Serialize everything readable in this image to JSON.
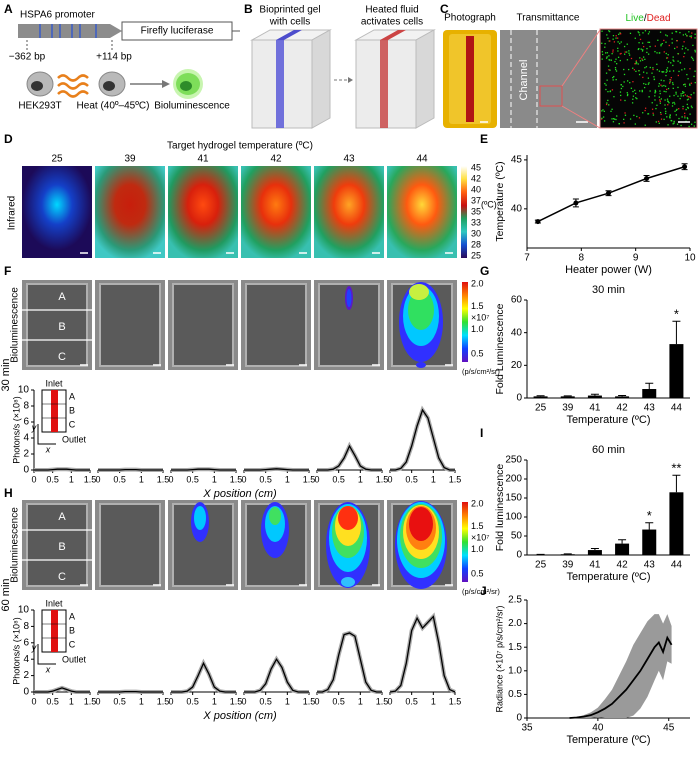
{
  "figure": {
    "A": {
      "label": "A",
      "promoter": "HSPA6 promoter",
      "gene": "Firefly luciferase",
      "upstream": "−362 bp",
      "downstream": "+114 bp",
      "cell_line": "HEK293T",
      "heat": "Heat (40º–45ºC)",
      "output": "Bioluminescence"
    },
    "B": {
      "label": "B",
      "gel": [
        "Bioprinted gel",
        "with cells"
      ],
      "fluid": [
        "Heated fluid",
        "activates cells"
      ]
    },
    "C": {
      "label": "C",
      "photo": "Photograph",
      "transmittance": "Transmittance",
      "channel": "Channel",
      "live": "Live",
      "slash": "/",
      "dead": "Dead"
    },
    "D": {
      "label": "D",
      "title": "Target hydrogel temperature (ºC)",
      "temperatures": [
        "25",
        "39",
        "41",
        "42",
        "43",
        "44"
      ],
      "row": "Infrared",
      "unit": "(ºC)",
      "scale": [
        "45",
        "42",
        "40",
        "37",
        "35",
        "33",
        "30",
        "28",
        "25"
      ]
    },
    "E": {
      "label": "E"
    },
    "F": {
      "label": "F",
      "time": "30 min",
      "row": "Bioluminescence",
      "regions": [
        "A",
        "B",
        "C"
      ],
      "scale": [
        "2.0",
        "1.5",
        "×10⁷",
        "1.0",
        "0.5"
      ],
      "unit": "(p/s/cm²/sr)",
      "inset": {
        "inlet": "Inlet",
        "outlet": "Outlet",
        "regions": [
          "A",
          "B",
          "C"
        ],
        "y": "y",
        "x": "x"
      }
    },
    "G": {
      "label": "G"
    },
    "H": {
      "label": "H",
      "time": "60 min",
      "row": "Bioluminescence",
      "regions": [
        "A",
        "B",
        "C"
      ],
      "scale": [
        "2.0",
        "1.5",
        "×10⁷",
        "1.0",
        "0.5"
      ],
      "unit": "(p/s/cm²/sr)",
      "inset": {
        "inlet": "Inlet",
        "outlet": "Outlet",
        "regions": [
          "A",
          "B",
          "C"
        ],
        "y": "y",
        "x": "x"
      }
    },
    "I": {
      "label": "I"
    },
    "J": {
      "label": "J"
    }
  },
  "chart_data": [
    {
      "type": "line",
      "error_style": "bars",
      "color": "#000000",
      "x": [
        7.2,
        7.9,
        8.5,
        9.2,
        9.9
      ],
      "values": [
        38.7,
        40.6,
        41.6,
        43.1,
        44.3
      ],
      "errors": [
        0.15,
        0.4,
        0.25,
        0.3,
        0.3
      ],
      "xlim": [
        7,
        10
      ],
      "xticks": [
        7,
        8,
        9,
        10
      ],
      "ylim": [
        36,
        45.5
      ],
      "yticks": [
        40,
        45
      ],
      "xlabel": "Heater power (W)",
      "ylabel": "Temperature (ºC)"
    },
    {
      "type": "bar",
      "title": "30 min",
      "color": "#000000",
      "categories": [
        "25",
        "39",
        "41",
        "42",
        "43",
        "44"
      ],
      "values": [
        1,
        1,
        1.5,
        1,
        5.5,
        33
      ],
      "errors": [
        0.4,
        0.3,
        0.8,
        0.5,
        3.5,
        14
      ],
      "significance": [
        null,
        null,
        null,
        null,
        null,
        "*"
      ],
      "ylim": [
        0,
        60
      ],
      "yticks": [
        0,
        20,
        40,
        60
      ],
      "xlabel": "Temperature (ºC)",
      "ylabel": "Fold Luminescence"
    },
    {
      "type": "bar",
      "title": "60 min",
      "color": "#000000",
      "categories": [
        "25",
        "39",
        "41",
        "42",
        "43",
        "44"
      ],
      "values": [
        1,
        2,
        13,
        30,
        67,
        165
      ],
      "errors": [
        0.5,
        1,
        4,
        10,
        18,
        45
      ],
      "significance": [
        null,
        null,
        null,
        null,
        "*",
        "**"
      ],
      "ylim": [
        0,
        250
      ],
      "yticks": [
        0,
        50,
        100,
        150,
        200,
        250
      ],
      "xlabel": "Temperature (ºC)",
      "ylabel": "Fold luminescence"
    },
    {
      "type": "line",
      "error_style": "band",
      "color": "#000000",
      "band_color": "#9a9a9a",
      "x": [
        38,
        38.5,
        39,
        39.5,
        40,
        40.5,
        41,
        41.5,
        42,
        42.5,
        43,
        43.5,
        44,
        44.3,
        44.6,
        44.9,
        45.2
      ],
      "values": [
        0,
        0.01,
        0.03,
        0.06,
        0.12,
        0.2,
        0.3,
        0.45,
        0.6,
        0.8,
        1.0,
        1.25,
        1.5,
        1.6,
        1.4,
        1.7,
        1.55
      ],
      "errors": [
        0,
        0.01,
        0.03,
        0.06,
        0.1,
        0.2,
        0.3,
        0.45,
        0.6,
        0.75,
        0.8,
        0.8,
        0.7,
        0.6,
        0.6,
        0.5,
        0.4
      ],
      "xlim": [
        35,
        46.5
      ],
      "xticks": [
        35,
        40,
        45
      ],
      "ylim": [
        0,
        2.5
      ],
      "yticks": [
        0,
        0.5,
        {
          "value": 1,
          "label": "1.0"
        },
        1.5,
        {
          "value": 2,
          "label": "2.0"
        },
        2.5
      ],
      "xlabel": "Temperature (ºC)",
      "ylabel": "Radiance (×10⁷ p/s/cm²/sr)"
    },
    {
      "type": "profiles",
      "color": "#000000",
      "x": [
        0,
        0.125,
        0.25,
        0.375,
        0.5,
        0.625,
        0.75,
        0.875,
        1,
        1.125,
        1.25,
        1.375,
        1.5
      ],
      "xlim": [
        0,
        1.5
      ],
      "xticks": [
        0,
        0.5,
        1,
        1.5
      ],
      "ylim": [
        0,
        10
      ],
      "yticks": [
        0,
        2,
        4,
        6,
        8,
        10
      ],
      "xlabel": "X position (cm)",
      "ylabel": "Photons/s (×10⁸)",
      "series": [
        {
          "values": [
            0,
            0,
            0,
            0,
            0.05,
            0.1,
            0.1,
            0.1,
            0.05,
            0,
            0,
            0,
            0
          ]
        },
        {
          "values": [
            0,
            0,
            0,
            0,
            0,
            0.05,
            0.05,
            0.05,
            0,
            0,
            0,
            0,
            0
          ]
        },
        {
          "values": [
            0,
            0,
            0,
            0,
            0.05,
            0.1,
            0.1,
            0.1,
            0.05,
            0,
            0,
            0,
            0
          ]
        },
        {
          "values": [
            0,
            0,
            0,
            0,
            0.05,
            0.1,
            0.15,
            0.1,
            0.05,
            0,
            0,
            0,
            0
          ]
        },
        {
          "values": [
            0,
            0,
            0,
            0.1,
            0.5,
            1.5,
            3,
            1.8,
            0.5,
            0.1,
            0,
            0,
            0
          ]
        },
        {
          "values": [
            0,
            0,
            0.2,
            1,
            3,
            5.5,
            7.5,
            6.5,
            4,
            1.5,
            0.3,
            0,
            0
          ]
        }
      ]
    },
    {
      "type": "profiles",
      "color": "#000000",
      "x": [
        0,
        0.125,
        0.25,
        0.375,
        0.5,
        0.625,
        0.75,
        0.875,
        1,
        1.125,
        1.25,
        1.375,
        1.5
      ],
      "xlim": [
        0,
        1.5
      ],
      "xticks": [
        0,
        0.5,
        1,
        1.5
      ],
      "ylim": [
        0,
        10
      ],
      "yticks": [
        0,
        2,
        4,
        6,
        8,
        10
      ],
      "xlabel": "X position (cm)",
      "ylabel": "Photons/s (×10⁸)",
      "series": [
        {
          "values": [
            0,
            0,
            0,
            0,
            0.1,
            0.3,
            0.5,
            0.3,
            0.1,
            0,
            0,
            0,
            0
          ]
        },
        {
          "values": [
            0,
            0,
            0,
            0,
            0,
            0.05,
            0.05,
            0.05,
            0,
            0,
            0,
            0,
            0
          ]
        },
        {
          "values": [
            0,
            0,
            0,
            0.1,
            0.6,
            2,
            3.5,
            2.2,
            0.6,
            0.1,
            0,
            0,
            0
          ]
        },
        {
          "values": [
            0,
            0,
            0,
            0.2,
            1,
            2.8,
            4,
            3,
            1.2,
            0.2,
            0,
            0,
            0
          ]
        },
        {
          "values": [
            0,
            0,
            0.3,
            1.5,
            4.5,
            7,
            7.2,
            6.8,
            4,
            1.2,
            0.2,
            0,
            0
          ]
        },
        {
          "values": [
            0,
            0.1,
            0.8,
            3.5,
            7.5,
            9,
            7.8,
            8.5,
            9.2,
            6,
            2,
            0.3,
            0
          ]
        }
      ]
    }
  ]
}
